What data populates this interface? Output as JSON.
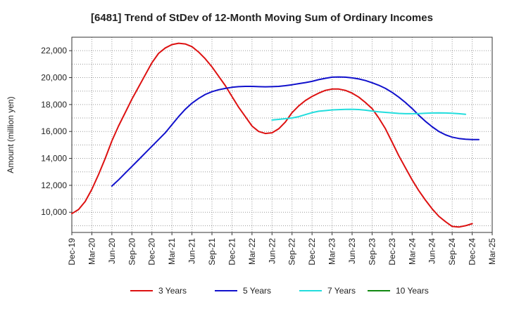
{
  "chart_data": {
    "type": "line",
    "title": "[6481]  Trend of StDev of 12-Month Moving Sum of Ordinary Incomes",
    "xlabel": "",
    "ylabel": "Amount (million yen)",
    "ylim": [
      8500,
      23000
    ],
    "y_ticks": [
      10000,
      12000,
      14000,
      16000,
      18000,
      20000,
      22000
    ],
    "y_tick_labels": [
      "10,000",
      "12,000",
      "14,000",
      "16,000",
      "18,000",
      "20,000",
      "22,000"
    ],
    "x_tick_labels": [
      "Dec-19",
      "Mar-20",
      "Jun-20",
      "Sep-20",
      "Dec-20",
      "Mar-21",
      "Jun-21",
      "Sep-21",
      "Dec-21",
      "Mar-22",
      "Jun-22",
      "Sep-22",
      "Dec-22",
      "Mar-23",
      "Jun-23",
      "Sep-23",
      "Dec-23",
      "Mar-24",
      "Jun-24",
      "Sep-24",
      "Dec-24",
      "Mar-25"
    ],
    "x_start": "Dec-19",
    "x_unit": "months",
    "grid": true,
    "legend_position": "bottom",
    "series": [
      {
        "name": "3 Years",
        "color": "#dd1111",
        "start_month": 0,
        "values": [
          9900,
          10200,
          10800,
          11700,
          12800,
          14000,
          15300,
          16400,
          17400,
          18400,
          19300,
          20200,
          21100,
          21800,
          22200,
          22450,
          22550,
          22500,
          22300,
          21900,
          21400,
          20800,
          20100,
          19400,
          18600,
          17800,
          17100,
          16400,
          16000,
          15850,
          15900,
          16200,
          16700,
          17400,
          17900,
          18300,
          18600,
          18850,
          19050,
          19150,
          19150,
          19050,
          18850,
          18550,
          18150,
          17700,
          17000,
          16200,
          15200,
          14200,
          13300,
          12400,
          11600,
          10900,
          10250,
          9700,
          9300,
          8950,
          8900,
          9000,
          9150
        ]
      },
      {
        "name": "5 Years",
        "color": "#1111cc",
        "start_month": 6,
        "values": [
          11950,
          12400,
          12900,
          13400,
          13900,
          14400,
          14900,
          15400,
          15900,
          16500,
          17100,
          17650,
          18100,
          18450,
          18750,
          18950,
          19100,
          19200,
          19280,
          19330,
          19350,
          19350,
          19330,
          19320,
          19330,
          19350,
          19400,
          19470,
          19550,
          19630,
          19720,
          19850,
          19950,
          20030,
          20050,
          20030,
          19980,
          19900,
          19780,
          19620,
          19430,
          19200,
          18900,
          18550,
          18150,
          17700,
          17200,
          16750,
          16350,
          16000,
          15750,
          15580,
          15480,
          15420,
          15400,
          15400
        ]
      },
      {
        "name": "7 Years",
        "color": "#22dddd",
        "start_month": 30,
        "values": [
          16850,
          16900,
          16950,
          17000,
          17100,
          17250,
          17400,
          17500,
          17550,
          17600,
          17620,
          17640,
          17650,
          17630,
          17580,
          17520,
          17460,
          17420,
          17380,
          17340,
          17320,
          17320,
          17330,
          17350,
          17370,
          17380,
          17370,
          17350,
          17320,
          17280
        ]
      },
      {
        "name": "10 Years",
        "color": "#118811",
        "start_month": 0,
        "values": []
      }
    ]
  }
}
